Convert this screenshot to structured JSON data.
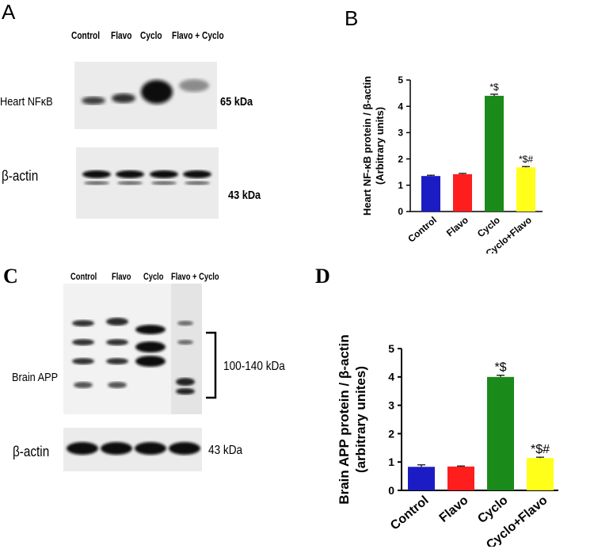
{
  "panels": {
    "a": {
      "letter": "A",
      "lanes": [
        "Control",
        "Flavo",
        "Cyclo",
        "Flavo + Cyclo"
      ],
      "row1_label": "Heart  NFκB",
      "row1_kda": "65 kDa",
      "row2_label": "β-actin",
      "row2_kda": "43 kDa"
    },
    "b": {
      "letter": "B"
    },
    "c": {
      "letter": "C",
      "lanes": [
        "Control",
        "Flavo",
        "Cyclo",
        "Flavo + Cyclo"
      ],
      "row1_label": "Brain APP",
      "row1_kda": "100-140 kDa",
      "row2_label": "β-actin",
      "row2_kda": "43 kDa"
    },
    "d": {
      "letter": "D"
    }
  },
  "chart_data": [
    {
      "type": "bar",
      "panel": "B",
      "categories": [
        "Control",
        "Flavo",
        "Cyclo",
        "Cyclo+Flavo"
      ],
      "values": [
        1.35,
        1.42,
        4.4,
        1.68
      ],
      "errors": [
        0.03,
        0.03,
        0.06,
        0.03
      ],
      "annotations": [
        "",
        "",
        "*$",
        "*$#"
      ],
      "colors": [
        "#1c1cc4",
        "#ff1e1e",
        "#1a8a1a",
        "#ffff1a"
      ],
      "ylabel": "Heart NF-κB protein / β-actin",
      "ylabel2": "(Arbitrary units)",
      "ylim": [
        0,
        5
      ],
      "yticks": [
        0,
        1,
        2,
        3,
        4,
        5
      ]
    },
    {
      "type": "bar",
      "panel": "D",
      "categories": [
        "Control",
        "Flavo",
        "Cyclo",
        "Cyclo+Flavo"
      ],
      "values": [
        0.83,
        0.84,
        4.0,
        1.14
      ],
      "errors": [
        0.07,
        0.02,
        0.06,
        0.03
      ],
      "annotations": [
        "",
        "",
        "*$",
        "*$#"
      ],
      "colors": [
        "#1c1cc4",
        "#ff1e1e",
        "#1a8a1a",
        "#ffff1a"
      ],
      "ylabel": "Brain APP protein / β-actin",
      "ylabel2": "(arbitrary unites)",
      "ylim": [
        0,
        5
      ],
      "yticks": [
        0,
        1,
        2,
        3,
        4,
        5
      ]
    }
  ]
}
